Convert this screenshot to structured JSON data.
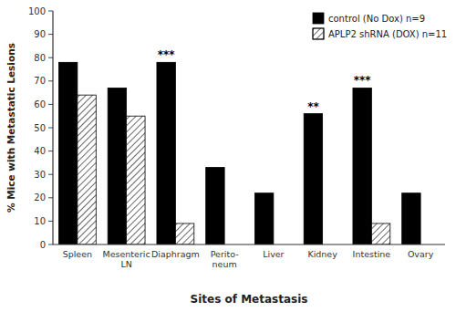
{
  "chart_data": {
    "type": "bar",
    "categories": [
      "Spleen",
      "Mesenteric\nLN",
      "Diaphragm",
      "Perito-\nneum",
      "Liver",
      "Kidney",
      "Intestine",
      "Ovary"
    ],
    "series": [
      {
        "name": "control (No Dox) n=9",
        "color": "#000000",
        "values": [
          78,
          67,
          78,
          33,
          22,
          56,
          67,
          22
        ]
      },
      {
        "name": "APLP2 shRNA (DOX) n=11",
        "color": "#ffffff",
        "values": [
          64,
          55,
          9,
          0,
          0,
          0,
          9,
          0
        ]
      }
    ],
    "xlabel": "Sites of Metastasis",
    "ylabel": "% Mice with Metastatic Lesions",
    "ylim": [
      0,
      100
    ],
    "yticks": [
      0,
      10,
      20,
      30,
      40,
      50,
      60,
      70,
      80,
      90,
      100
    ],
    "annotations": [
      {
        "text": "***",
        "category": "Diaphragm"
      },
      {
        "text": "**",
        "category": "Kidney"
      },
      {
        "text": "***",
        "category": "Intestine"
      }
    ],
    "legend": "upper right",
    "grid": false
  }
}
